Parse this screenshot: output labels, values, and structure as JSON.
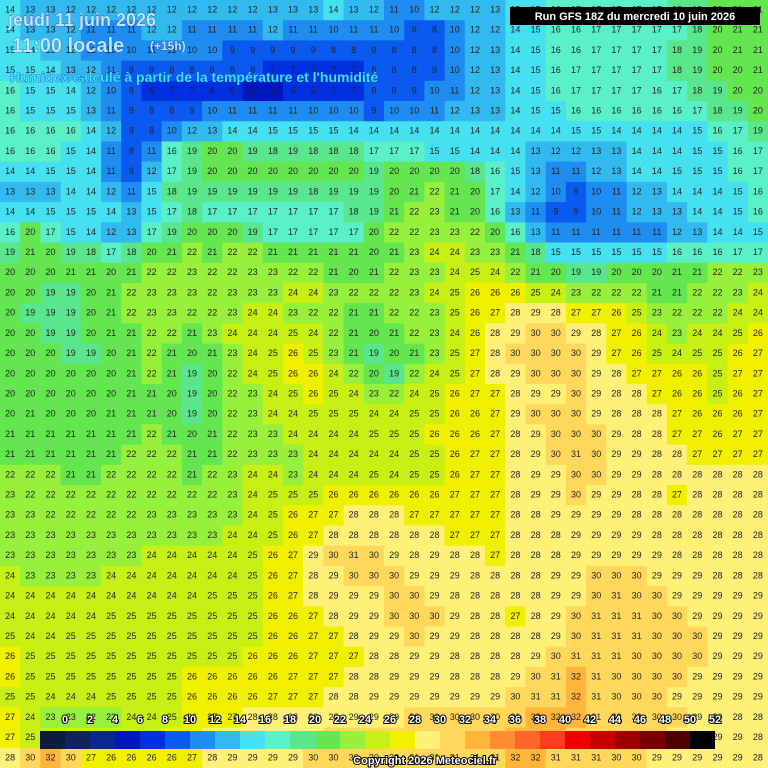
{
  "header": {
    "date": "jeudi 11 juin 2026",
    "time": "11:00 locale",
    "lead": "(+15h)",
    "subtitle": "Humidex calculé à partir de la température et l'humidité",
    "run": "Run GFS 18Z du mercredi 10 juin 2026"
  },
  "grid": {
    "values": [
      [
        14,
        13,
        13,
        12,
        12,
        12,
        12,
        12,
        12,
        12,
        12,
        12,
        12,
        13,
        13,
        13,
        14,
        13,
        12,
        11,
        10,
        12,
        12,
        12,
        13,
        15,
        15,
        16,
        17,
        17,
        17,
        17,
        17,
        18,
        19,
        20,
        21,
        21
      ],
      [
        14,
        13,
        13,
        12,
        11,
        11,
        11,
        12,
        12,
        11,
        11,
        11,
        11,
        12,
        11,
        11,
        10,
        11,
        11,
        10,
        9,
        8,
        10,
        12,
        12,
        14,
        15,
        16,
        16,
        17,
        17,
        17,
        17,
        17,
        18,
        20,
        21,
        21
      ],
      [
        15,
        14,
        13,
        12,
        11,
        10,
        10,
        11,
        11,
        10,
        10,
        9,
        9,
        9,
        9,
        9,
        8,
        8,
        9,
        8,
        8,
        8,
        10,
        12,
        13,
        14,
        15,
        16,
        16,
        17,
        17,
        17,
        17,
        18,
        19,
        20,
        21,
        21
      ],
      [
        15,
        15,
        14,
        13,
        12,
        11,
        9,
        9,
        8,
        8,
        8,
        8,
        8,
        7,
        7,
        7,
        7,
        7,
        8,
        8,
        8,
        9,
        10,
        12,
        13,
        14,
        15,
        16,
        17,
        17,
        17,
        17,
        17,
        18,
        19,
        20,
        20,
        21
      ],
      [
        16,
        15,
        15,
        14,
        12,
        10,
        8,
        6,
        7,
        7,
        6,
        6,
        5,
        5,
        6,
        6,
        7,
        7,
        8,
        8,
        9,
        10,
        11,
        12,
        13,
        14,
        15,
        16,
        17,
        17,
        17,
        17,
        16,
        17,
        18,
        19,
        20,
        20
      ],
      [
        16,
        15,
        15,
        15,
        13,
        11,
        9,
        8,
        8,
        9,
        10,
        11,
        11,
        11,
        11,
        10,
        10,
        10,
        9,
        10,
        10,
        11,
        12,
        13,
        13,
        14,
        15,
        15,
        16,
        16,
        16,
        16,
        16,
        16,
        17,
        18,
        19,
        20
      ],
      [
        16,
        16,
        16,
        16,
        14,
        12,
        9,
        8,
        10,
        12,
        13,
        14,
        14,
        15,
        15,
        15,
        15,
        14,
        14,
        14,
        14,
        14,
        14,
        14,
        14,
        14,
        14,
        14,
        15,
        15,
        14,
        14,
        14,
        14,
        15,
        16,
        17,
        19
      ],
      [
        16,
        16,
        16,
        15,
        14,
        11,
        8,
        11,
        16,
        19,
        20,
        20,
        19,
        18,
        19,
        18,
        18,
        18,
        17,
        17,
        17,
        15,
        15,
        14,
        14,
        14,
        13,
        12,
        12,
        13,
        13,
        14,
        14,
        14,
        15,
        15,
        16,
        17
      ],
      [
        14,
        14,
        15,
        15,
        14,
        11,
        9,
        12,
        17,
        19,
        20,
        20,
        20,
        20,
        20,
        20,
        20,
        20,
        19,
        20,
        20,
        20,
        20,
        18,
        16,
        15,
        13,
        11,
        11,
        12,
        13,
        14,
        14,
        15,
        15,
        15,
        16,
        17
      ],
      [
        13,
        13,
        13,
        14,
        14,
        12,
        11,
        15,
        18,
        19,
        19,
        19,
        19,
        19,
        19,
        18,
        19,
        19,
        19,
        20,
        21,
        22,
        21,
        20,
        17,
        14,
        12,
        10,
        9,
        10,
        11,
        12,
        13,
        14,
        14,
        14,
        15,
        16
      ],
      [
        14,
        14,
        15,
        15,
        15,
        14,
        13,
        15,
        17,
        18,
        17,
        17,
        17,
        17,
        17,
        17,
        17,
        18,
        19,
        21,
        22,
        23,
        21,
        20,
        16,
        13,
        11,
        9,
        9,
        10,
        11,
        12,
        13,
        13,
        14,
        14,
        15,
        16
      ],
      [
        16,
        20,
        17,
        15,
        14,
        12,
        13,
        17,
        19,
        20,
        20,
        20,
        19,
        17,
        17,
        17,
        17,
        17,
        20,
        22,
        22,
        23,
        23,
        22,
        20,
        16,
        13,
        11,
        11,
        11,
        11,
        11,
        11,
        12,
        13,
        14,
        14,
        15
      ],
      [
        19,
        21,
        20,
        19,
        18,
        17,
        18,
        20,
        21,
        22,
        21,
        22,
        22,
        21,
        21,
        21,
        21,
        21,
        20,
        21,
        23,
        24,
        24,
        23,
        23,
        21,
        18,
        15,
        15,
        15,
        15,
        15,
        15,
        16,
        16,
        16,
        17,
        17
      ],
      [
        20,
        20,
        20,
        21,
        21,
        20,
        21,
        22,
        22,
        23,
        22,
        22,
        23,
        23,
        22,
        22,
        21,
        20,
        21,
        22,
        23,
        23,
        24,
        25,
        24,
        22,
        21,
        20,
        19,
        19,
        20,
        20,
        20,
        21,
        21,
        22,
        22,
        23
      ],
      [
        20,
        20,
        19,
        19,
        20,
        21,
        22,
        23,
        23,
        23,
        22,
        23,
        23,
        23,
        24,
        24,
        23,
        22,
        22,
        22,
        23,
        24,
        25,
        26,
        26,
        26,
        25,
        24,
        23,
        22,
        22,
        22,
        21,
        21,
        22,
        22,
        23,
        24
      ],
      [
        20,
        19,
        19,
        19,
        20,
        21,
        22,
        23,
        23,
        22,
        22,
        23,
        24,
        24,
        23,
        22,
        22,
        21,
        21,
        22,
        22,
        23,
        25,
        26,
        27,
        28,
        29,
        28,
        27,
        27,
        26,
        25,
        23,
        22,
        22,
        22,
        24,
        24
      ],
      [
        20,
        20,
        19,
        19,
        20,
        21,
        21,
        22,
        22,
        21,
        23,
        24,
        24,
        24,
        25,
        24,
        22,
        21,
        20,
        21,
        22,
        23,
        24,
        26,
        28,
        29,
        30,
        30,
        29,
        28,
        27,
        26,
        24,
        23,
        24,
        24,
        25,
        26
      ],
      [
        20,
        20,
        20,
        19,
        19,
        20,
        21,
        22,
        21,
        20,
        21,
        23,
        24,
        25,
        26,
        25,
        23,
        21,
        19,
        20,
        21,
        23,
        25,
        27,
        28,
        30,
        30,
        30,
        30,
        29,
        27,
        26,
        25,
        24,
        25,
        25,
        26,
        27
      ],
      [
        20,
        20,
        20,
        20,
        20,
        20,
        21,
        22,
        21,
        19,
        20,
        22,
        24,
        25,
        26,
        26,
        24,
        22,
        20,
        19,
        22,
        24,
        25,
        27,
        28,
        29,
        30,
        30,
        30,
        29,
        28,
        27,
        27,
        26,
        26,
        25,
        27,
        27
      ],
      [
        20,
        20,
        20,
        20,
        20,
        20,
        21,
        21,
        20,
        19,
        20,
        22,
        23,
        24,
        25,
        26,
        25,
        24,
        23,
        22,
        24,
        25,
        26,
        27,
        27,
        28,
        29,
        29,
        30,
        29,
        28,
        28,
        27,
        26,
        26,
        25,
        26,
        27
      ],
      [
        20,
        21,
        20,
        20,
        20,
        21,
        21,
        21,
        20,
        19,
        20,
        22,
        23,
        24,
        24,
        25,
        25,
        25,
        24,
        24,
        25,
        25,
        26,
        26,
        27,
        29,
        30,
        30,
        30,
        29,
        28,
        28,
        28,
        27,
        26,
        26,
        26,
        27
      ],
      [
        21,
        21,
        21,
        21,
        21,
        21,
        21,
        22,
        21,
        20,
        21,
        22,
        23,
        23,
        24,
        24,
        24,
        24,
        25,
        25,
        25,
        26,
        26,
        26,
        27,
        28,
        29,
        30,
        30,
        30,
        29,
        28,
        28,
        27,
        27,
        26,
        27,
        27
      ],
      [
        21,
        21,
        21,
        21,
        21,
        21,
        22,
        22,
        22,
        21,
        21,
        22,
        23,
        23,
        23,
        24,
        24,
        24,
        24,
        24,
        25,
        25,
        26,
        27,
        27,
        28,
        29,
        30,
        31,
        30,
        29,
        29,
        28,
        28,
        27,
        27,
        27,
        27
      ],
      [
        22,
        22,
        22,
        21,
        21,
        22,
        22,
        22,
        22,
        21,
        22,
        23,
        24,
        24,
        23,
        24,
        24,
        24,
        25,
        24,
        25,
        25,
        26,
        27,
        27,
        28,
        29,
        29,
        30,
        30,
        29,
        29,
        28,
        28,
        28,
        28,
        28,
        28
      ],
      [
        23,
        22,
        22,
        22,
        22,
        22,
        22,
        22,
        22,
        22,
        22,
        23,
        24,
        25,
        25,
        25,
        26,
        26,
        26,
        26,
        26,
        26,
        27,
        27,
        27,
        28,
        29,
        29,
        30,
        29,
        29,
        28,
        28,
        27,
        28,
        28,
        28,
        28
      ],
      [
        23,
        23,
        22,
        22,
        22,
        22,
        22,
        23,
        23,
        23,
        23,
        23,
        24,
        25,
        26,
        27,
        27,
        28,
        28,
        28,
        27,
        27,
        27,
        27,
        27,
        28,
        28,
        29,
        29,
        29,
        29,
        28,
        28,
        28,
        28,
        28,
        28,
        28
      ],
      [
        23,
        23,
        23,
        23,
        23,
        23,
        23,
        23,
        23,
        23,
        23,
        24,
        24,
        25,
        26,
        27,
        28,
        28,
        28,
        28,
        28,
        28,
        27,
        27,
        27,
        28,
        28,
        28,
        29,
        29,
        29,
        29,
        28,
        28,
        28,
        28,
        28,
        28
      ],
      [
        23,
        23,
        23,
        23,
        23,
        23,
        23,
        24,
        24,
        24,
        24,
        24,
        25,
        26,
        27,
        29,
        30,
        31,
        30,
        29,
        28,
        29,
        28,
        28,
        27,
        28,
        28,
        28,
        29,
        29,
        29,
        29,
        29,
        28,
        28,
        28,
        28,
        28
      ],
      [
        24,
        23,
        23,
        23,
        23,
        24,
        24,
        24,
        24,
        24,
        24,
        24,
        25,
        26,
        27,
        28,
        29,
        30,
        30,
        30,
        29,
        29,
        29,
        28,
        28,
        28,
        28,
        29,
        29,
        30,
        30,
        30,
        29,
        29,
        29,
        28,
        28,
        28
      ],
      [
        24,
        24,
        24,
        24,
        24,
        24,
        24,
        24,
        24,
        24,
        25,
        25,
        25,
        26,
        27,
        28,
        29,
        29,
        29,
        30,
        30,
        29,
        28,
        28,
        28,
        28,
        28,
        29,
        29,
        30,
        31,
        30,
        30,
        29,
        29,
        29,
        29,
        29
      ],
      [
        24,
        24,
        24,
        24,
        24,
        25,
        25,
        25,
        25,
        25,
        25,
        25,
        25,
        26,
        26,
        27,
        28,
        29,
        29,
        30,
        30,
        30,
        29,
        28,
        28,
        27,
        28,
        29,
        30,
        31,
        31,
        31,
        30,
        30,
        29,
        29,
        29,
        29
      ],
      [
        25,
        24,
        24,
        25,
        25,
        25,
        25,
        25,
        25,
        25,
        25,
        25,
        25,
        26,
        26,
        27,
        27,
        28,
        29,
        29,
        30,
        29,
        29,
        28,
        28,
        28,
        28,
        29,
        30,
        31,
        31,
        31,
        30,
        30,
        30,
        29,
        29,
        29
      ],
      [
        26,
        25,
        25,
        25,
        25,
        25,
        25,
        25,
        25,
        25,
        25,
        25,
        26,
        26,
        26,
        27,
        27,
        27,
        28,
        28,
        29,
        29,
        28,
        28,
        28,
        28,
        29,
        30,
        31,
        31,
        31,
        30,
        30,
        30,
        30,
        29,
        29,
        29
      ],
      [
        26,
        25,
        25,
        25,
        25,
        25,
        25,
        25,
        25,
        26,
        26,
        26,
        26,
        26,
        27,
        27,
        27,
        28,
        28,
        29,
        29,
        29,
        28,
        28,
        28,
        29,
        30,
        31,
        32,
        31,
        30,
        30,
        30,
        30,
        29,
        29,
        29,
        29
      ],
      [
        25,
        25,
        24,
        24,
        24,
        25,
        25,
        25,
        25,
        26,
        26,
        26,
        26,
        27,
        27,
        27,
        28,
        28,
        29,
        29,
        29,
        29,
        29,
        29,
        29,
        30,
        31,
        31,
        32,
        31,
        30,
        30,
        30,
        29,
        29,
        29,
        29,
        29
      ],
      [
        27,
        24,
        23,
        23,
        22,
        23,
        24,
        24,
        25,
        26,
        27,
        27,
        28,
        28,
        28,
        28,
        28,
        29,
        29,
        29,
        30,
        30,
        30,
        30,
        30,
        31,
        32,
        32,
        32,
        31,
        30,
        30,
        30,
        30,
        29,
        29,
        28,
        28
      ],
      [
        27,
        25,
        24,
        24,
        24,
        24,
        24,
        25,
        26,
        27,
        28,
        28,
        29,
        29,
        29,
        29,
        30,
        30,
        30,
        30,
        31,
        31,
        31,
        31,
        31,
        32,
        32,
        32,
        31,
        31,
        30,
        30,
        30,
        29,
        29,
        29,
        29,
        28
      ],
      [
        28,
        30,
        32,
        30,
        27,
        26,
        26,
        26,
        26,
        27,
        28,
        29,
        29,
        29,
        29,
        30,
        30,
        30,
        30,
        30,
        31,
        31,
        31,
        31,
        31,
        32,
        32,
        31,
        31,
        31,
        30,
        30,
        29,
        29,
        29,
        29,
        29,
        28
      ]
    ]
  },
  "scale": {
    "labels": [
      0,
      2,
      4,
      6,
      8,
      10,
      12,
      14,
      16,
      18,
      20,
      22,
      24,
      26,
      28,
      30,
      32,
      34,
      36,
      38,
      40,
      42,
      44,
      46,
      48,
      50,
      52
    ],
    "colors": [
      "#0d1b3d",
      "#10245a",
      "#0a2890",
      "#0018c0",
      "#0030e0",
      "#0a5af0",
      "#1e8cf0",
      "#32b9f0",
      "#46e1f0",
      "#5af0c8",
      "#5ae68c",
      "#64e650",
      "#96f03c",
      "#c8f014",
      "#f0f000",
      "#fff078",
      "#ffd75a",
      "#ffb43c",
      "#ff8c32",
      "#ff6428",
      "#ff3c1e",
      "#f00000",
      "#c80000",
      "#a00000",
      "#780000",
      "#500000",
      "#000000"
    ]
  },
  "footer": {
    "copyright": "Copyright 2026 Meteociel.fr"
  }
}
